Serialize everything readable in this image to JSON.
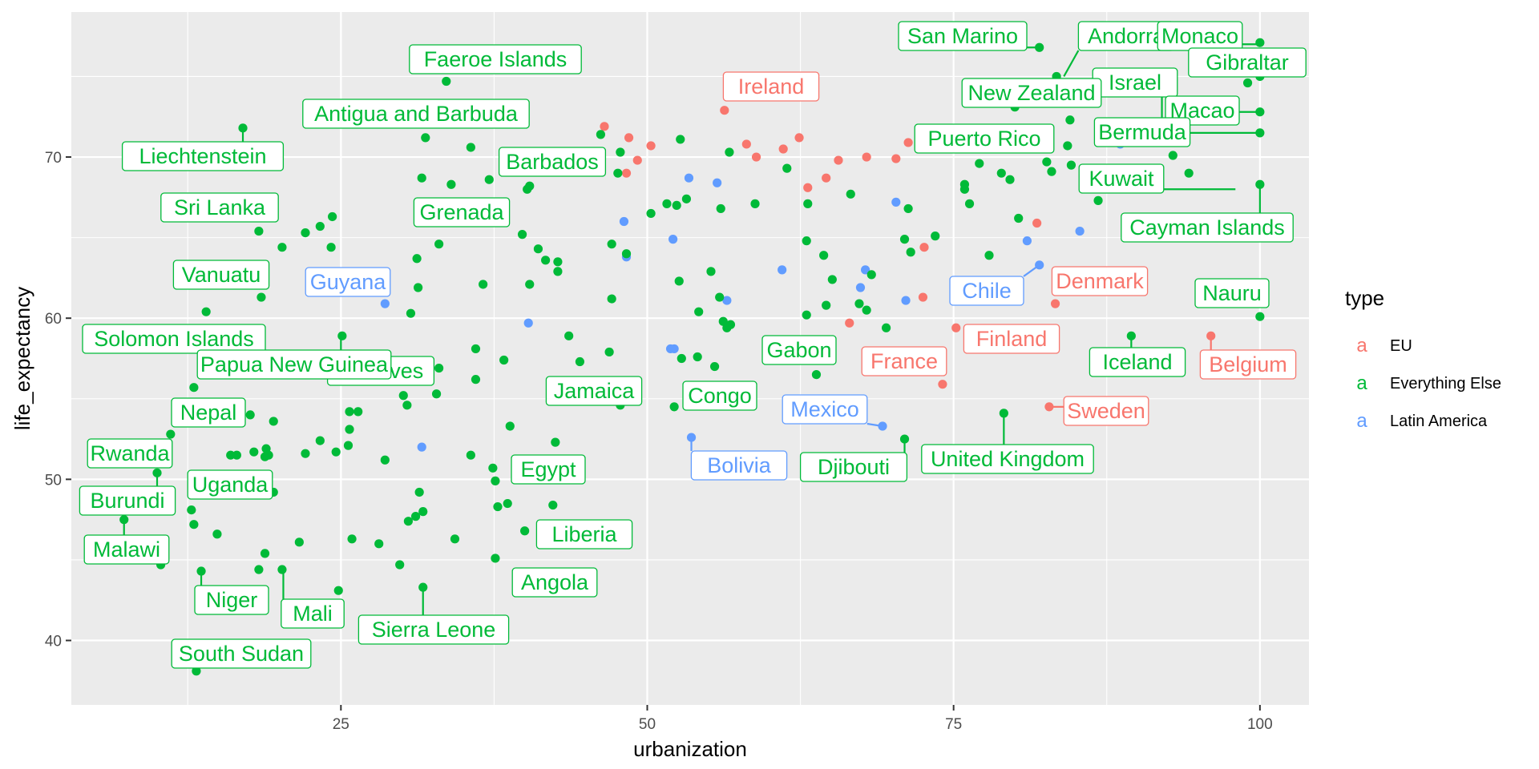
{
  "colors": {
    "EU": "#F8766D",
    "Everything Else": "#00BA38",
    "Latin America": "#619CFF",
    "panel": "#EBEBEB",
    "grid": "#FFFFFF"
  },
  "chart_data": {
    "type": "scatter",
    "xlabel": "urbanization",
    "ylabel": "life_expectancy",
    "xlim": [
      3,
      104
    ],
    "ylim": [
      36,
      79
    ],
    "x_ticks": [
      25,
      50,
      75,
      100
    ],
    "y_ticks": [
      40,
      50,
      60,
      70
    ],
    "legend": {
      "title": "type",
      "position": "right",
      "key_glyph": "a",
      "entries": [
        "EU",
        "Everything Else",
        "Latin America"
      ]
    },
    "grid": true,
    "labels": [
      {
        "text": "San Marino",
        "type": "Everything Else",
        "x": 82,
        "y": 76.8
      },
      {
        "text": "Andorra",
        "type": "Everything Else",
        "x": 84,
        "y": 75
      },
      {
        "text": "Monaco",
        "type": "Everything Else",
        "x": 100,
        "y": 77
      },
      {
        "text": "Gibraltar",
        "type": "Everything Else",
        "x": 100,
        "y": 75
      },
      {
        "text": "Israel",
        "type": "Everything Else",
        "x": 92,
        "y": 72
      },
      {
        "text": "New Zealand",
        "type": "Everything Else",
        "x": 80,
        "y": 73
      },
      {
        "text": "Macao",
        "type": "Everything Else",
        "x": 100,
        "y": 72.8
      },
      {
        "text": "Bermuda",
        "type": "Everything Else",
        "x": 100,
        "y": 71.5
      },
      {
        "text": "Puerto Rico",
        "type": "Everything Else",
        "x": 79,
        "y": 70
      },
      {
        "text": "Kuwait",
        "type": "Everything Else",
        "x": 98,
        "y": 68
      },
      {
        "text": "Cayman Islands",
        "type": "Everything Else",
        "x": 100,
        "y": 68.3
      },
      {
        "text": "Faeroe Islands",
        "type": "Everything Else",
        "x": 42,
        "y": 74.7
      },
      {
        "text": "Ireland",
        "type": "EU",
        "x": 63,
        "y": 72.9
      },
      {
        "text": "Antigua and Barbuda",
        "type": "Everything Else",
        "x": 30,
        "y": 71.2
      },
      {
        "text": "Liechtenstein",
        "type": "Everything Else",
        "x": 17,
        "y": 71.8
      },
      {
        "text": "Barbados",
        "type": "Everything Else",
        "x": 45,
        "y": 68.6
      },
      {
        "text": "Sri Lanka",
        "type": "Everything Else",
        "x": 18.3,
        "y": 65.4
      },
      {
        "text": "Grenada",
        "type": "Everything Else",
        "x": 36,
        "y": 67
      },
      {
        "text": "Vanuatu",
        "type": "Everything Else",
        "x": 18.5,
        "y": 61.3
      },
      {
        "text": "Guyana",
        "type": "Latin America",
        "x": 28.6,
        "y": 60.9
      },
      {
        "text": "Solomon Islands",
        "type": "Everything Else",
        "x": 14,
        "y": 60.3
      },
      {
        "text": "Maldives",
        "type": "Everything Else",
        "x": 33,
        "y": 56.9
      },
      {
        "text": "Papua New Guinea",
        "type": "Everything Else",
        "x": 25,
        "y": 58.8
      },
      {
        "text": "Nepal",
        "type": "Everything Else",
        "x": 13,
        "y": 55.7
      },
      {
        "text": "Rwanda",
        "type": "Everything Else",
        "x": 11,
        "y": 52.8
      },
      {
        "text": "Uganda",
        "type": "Everything Else",
        "x": 12.8,
        "y": 48.1
      },
      {
        "text": "Burundi",
        "type": "Everything Else",
        "x": 10,
        "y": 50.4
      },
      {
        "text": "Malawi",
        "type": "Everything Else",
        "x": 7.3,
        "y": 47.5
      },
      {
        "text": "Niger",
        "type": "Everything Else",
        "x": 13.6,
        "y": 44.3
      },
      {
        "text": "Mali",
        "type": "Everything Else",
        "x": 20.3,
        "y": 44.4
      },
      {
        "text": "Sierra Leone",
        "type": "Everything Else",
        "x": 31.7,
        "y": 43.3
      },
      {
        "text": "South Sudan",
        "type": "Everything Else",
        "x": 13.2,
        "y": 38.1
      },
      {
        "text": "Jamaica",
        "type": "Everything Else",
        "x": 47.8,
        "y": 54.6
      },
      {
        "text": "Egypt",
        "type": "Everything Else",
        "x": 44,
        "y": 51
      },
      {
        "text": "Liberia",
        "type": "Everything Else",
        "x": 48,
        "y": 48
      },
      {
        "text": "Angola",
        "type": "Everything Else",
        "x": 43,
        "y": 45
      },
      {
        "text": "Congo",
        "type": "Everything Else",
        "x": 52.2,
        "y": 54.5
      },
      {
        "text": "Gabon",
        "type": "Everything Else",
        "x": 66,
        "y": 58.5
      },
      {
        "text": "Mexico",
        "type": "Latin America",
        "x": 69.2,
        "y": 53.3
      },
      {
        "text": "Bolivia",
        "type": "Latin America",
        "x": 53.6,
        "y": 52.6
      },
      {
        "text": "Djibouti",
        "type": "Everything Else",
        "x": 71,
        "y": 52.5
      },
      {
        "text": "France",
        "type": "EU",
        "x": 73,
        "y": 56
      },
      {
        "text": "Finland",
        "type": "EU",
        "x": 75.3,
        "y": 59.4
      },
      {
        "text": "Chile",
        "type": "Latin America",
        "x": 82,
        "y": 63.3
      },
      {
        "text": "Denmark",
        "type": "EU",
        "x": 83.3,
        "y": 60.9
      },
      {
        "text": "United Kingdom",
        "type": "Everything Else",
        "x": 79.1,
        "y": 54.1
      },
      {
        "text": "Sweden",
        "type": "EU",
        "x": 82.8,
        "y": 54.5
      },
      {
        "text": "Iceland",
        "type": "Everything Else",
        "x": 89.5,
        "y": 58.9
      },
      {
        "text": "Belgium",
        "type": "EU",
        "x": 96,
        "y": 58.9
      },
      {
        "text": "Nauru",
        "type": "Everything Else",
        "x": 100,
        "y": 60.1
      }
    ],
    "series": [
      {
        "name": "EU",
        "points": [
          [
            46.5,
            71.9
          ],
          [
            48.5,
            71.2
          ],
          [
            48.3,
            69.0
          ],
          [
            49.2,
            69.8
          ],
          [
            50.3,
            70.7
          ],
          [
            56.3,
            72.9
          ],
          [
            58.1,
            70.8
          ],
          [
            58.9,
            70.0
          ],
          [
            61.1,
            70.5
          ],
          [
            62.4,
            71.2
          ],
          [
            63.1,
            68.1
          ],
          [
            64.6,
            68.7
          ],
          [
            65.6,
            69.8
          ],
          [
            67.9,
            70.0
          ],
          [
            70.3,
            69.9
          ],
          [
            71.3,
            70.9
          ],
          [
            72.6,
            64.4
          ],
          [
            72.5,
            61.3
          ],
          [
            66.5,
            59.7
          ],
          [
            75.2,
            59.4
          ],
          [
            74.1,
            55.9
          ],
          [
            81.8,
            65.9
          ],
          [
            83.3,
            60.9
          ],
          [
            82.8,
            54.5
          ],
          [
            96.0,
            58.9
          ]
        ]
      },
      {
        "name": "Latin America",
        "points": [
          [
            28.6,
            60.9
          ],
          [
            31.6,
            52.0
          ],
          [
            48.1,
            66.0
          ],
          [
            48.3,
            63.8
          ],
          [
            40.3,
            59.7
          ],
          [
            52.2,
            58.1
          ],
          [
            51.9,
            58.1
          ],
          [
            52.1,
            64.9
          ],
          [
            53.4,
            68.7
          ],
          [
            55.7,
            68.4
          ],
          [
            56.5,
            61.1
          ],
          [
            53.6,
            52.6
          ],
          [
            61.0,
            63.0
          ],
          [
            67.4,
            61.9
          ],
          [
            67.8,
            63.0
          ],
          [
            69.2,
            53.3
          ],
          [
            70.3,
            67.2
          ],
          [
            71.1,
            61.1
          ],
          [
            81.0,
            64.8
          ],
          [
            82.0,
            63.3
          ],
          [
            85.3,
            65.4
          ],
          [
            88.6,
            70.8
          ]
        ]
      },
      {
        "name": "Everything Else",
        "points": [
          [
            17.0,
            71.8
          ],
          [
            33.6,
            74.7
          ],
          [
            31.9,
            71.2
          ],
          [
            31.6,
            68.7
          ],
          [
            34.0,
            68.3
          ],
          [
            35.6,
            70.6
          ],
          [
            37.1,
            68.6
          ],
          [
            40.2,
            68.0
          ],
          [
            40.4,
            68.2
          ],
          [
            46.2,
            71.4
          ],
          [
            47.8,
            70.3
          ],
          [
            52.7,
            71.1
          ],
          [
            47.6,
            69.0
          ],
          [
            18.3,
            65.4
          ],
          [
            20.2,
            64.4
          ],
          [
            22.1,
            65.3
          ],
          [
            23.3,
            65.7
          ],
          [
            24.3,
            66.3
          ],
          [
            24.2,
            64.4
          ],
          [
            18.5,
            61.3
          ],
          [
            14.0,
            60.4
          ],
          [
            31.2,
            63.7
          ],
          [
            33.0,
            64.6
          ],
          [
            31.3,
            61.9
          ],
          [
            30.7,
            60.3
          ],
          [
            36.6,
            62.1
          ],
          [
            39.8,
            65.2
          ],
          [
            41.1,
            64.3
          ],
          [
            41.7,
            63.6
          ],
          [
            42.7,
            63.5
          ],
          [
            42.7,
            62.9
          ],
          [
            40.4,
            62.1
          ],
          [
            47.1,
            64.6
          ],
          [
            48.3,
            64.0
          ],
          [
            47.1,
            61.2
          ],
          [
            50.3,
            66.5
          ],
          [
            51.6,
            67.1
          ],
          [
            52.4,
            67.0
          ],
          [
            53.2,
            67.4
          ],
          [
            52.6,
            62.3
          ],
          [
            54.2,
            60.4
          ],
          [
            55.2,
            62.9
          ],
          [
            55.9,
            61.3
          ],
          [
            56.2,
            59.8
          ],
          [
            56.5,
            59.4
          ],
          [
            56.8,
            59.6
          ],
          [
            56.0,
            66.8
          ],
          [
            56.7,
            70.3
          ],
          [
            58.8,
            67.1
          ],
          [
            61.4,
            69.3
          ],
          [
            63.1,
            67.1
          ],
          [
            63.0,
            64.8
          ],
          [
            64.4,
            63.9
          ],
          [
            63.0,
            60.2
          ],
          [
            64.6,
            60.8
          ],
          [
            65.1,
            62.4
          ],
          [
            66.6,
            67.7
          ],
          [
            67.3,
            60.9
          ],
          [
            67.9,
            60.5
          ],
          [
            68.3,
            62.7
          ],
          [
            69.5,
            59.4
          ],
          [
            71.0,
            64.9
          ],
          [
            71.3,
            66.8
          ],
          [
            71.5,
            64.1
          ],
          [
            73.5,
            65.1
          ],
          [
            75.9,
            68.3
          ],
          [
            75.9,
            68.0
          ],
          [
            76.3,
            67.1
          ],
          [
            77.1,
            69.6
          ],
          [
            77.9,
            63.9
          ],
          [
            78.9,
            69.0
          ],
          [
            79.6,
            68.6
          ],
          [
            80.3,
            66.2
          ],
          [
            80.0,
            73.1
          ],
          [
            82.0,
            76.8
          ],
          [
            83.4,
            75.0
          ],
          [
            82.6,
            69.7
          ],
          [
            83.0,
            69.1
          ],
          [
            84.3,
            70.7
          ],
          [
            84.5,
            72.3
          ],
          [
            84.6,
            69.5
          ],
          [
            86.8,
            67.3
          ],
          [
            92.9,
            70.1
          ],
          [
            94.2,
            69.0
          ],
          [
            95.3,
            75.3
          ],
          [
            99.0,
            74.6
          ],
          [
            100.0,
            77.1
          ],
          [
            100.0,
            75.0
          ],
          [
            100.0,
            72.8
          ],
          [
            100.0,
            71.5
          ],
          [
            100.0,
            68.3
          ],
          [
            100.0,
            60.1
          ],
          [
            89.5,
            58.9
          ],
          [
            79.1,
            54.1
          ],
          [
            71.0,
            52.5
          ],
          [
            63.8,
            56.5
          ],
          [
            55.5,
            57.0
          ],
          [
            54.1,
            57.6
          ],
          [
            52.8,
            57.5
          ],
          [
            52.2,
            54.5
          ],
          [
            47.8,
            54.6
          ],
          [
            46.9,
            57.9
          ],
          [
            44.5,
            57.3
          ],
          [
            43.6,
            58.9
          ],
          [
            42.5,
            52.3
          ],
          [
            42.3,
            48.4
          ],
          [
            40.0,
            46.8
          ],
          [
            38.8,
            53.3
          ],
          [
            38.6,
            48.5
          ],
          [
            37.8,
            48.3
          ],
          [
            38.3,
            57.4
          ],
          [
            37.4,
            50.7
          ],
          [
            37.6,
            49.9
          ],
          [
            37.6,
            45.1
          ],
          [
            36.0,
            58.1
          ],
          [
            36.0,
            56.2
          ],
          [
            35.6,
            51.5
          ],
          [
            34.3,
            46.3
          ],
          [
            33.0,
            56.9
          ],
          [
            32.8,
            55.3
          ],
          [
            31.7,
            48.0
          ],
          [
            31.4,
            49.2
          ],
          [
            31.1,
            47.7
          ],
          [
            31.7,
            43.3
          ],
          [
            30.4,
            54.6
          ],
          [
            30.1,
            55.2
          ],
          [
            29.8,
            44.7
          ],
          [
            30.5,
            47.4
          ],
          [
            28.6,
            51.2
          ],
          [
            28.1,
            46.0
          ],
          [
            26.4,
            54.2
          ],
          [
            25.7,
            54.2
          ],
          [
            25.7,
            53.1
          ],
          [
            25.9,
            46.3
          ],
          [
            25.6,
            52.1
          ],
          [
            25.1,
            58.9
          ],
          [
            24.6,
            51.7
          ],
          [
            24.8,
            43.1
          ],
          [
            23.3,
            52.4
          ],
          [
            22.1,
            51.6
          ],
          [
            21.6,
            46.1
          ],
          [
            20.2,
            44.4
          ],
          [
            19.5,
            53.6
          ],
          [
            19.1,
            51.5
          ],
          [
            19.5,
            49.2
          ],
          [
            18.8,
            45.4
          ],
          [
            18.9,
            51.9
          ],
          [
            18.8,
            51.4
          ],
          [
            18.3,
            44.4
          ],
          [
            17.6,
            54.0
          ],
          [
            17.9,
            51.7
          ],
          [
            16.5,
            51.5
          ],
          [
            16.0,
            51.5
          ],
          [
            14.9,
            46.6
          ],
          [
            13.6,
            44.3
          ],
          [
            13.2,
            38.1
          ],
          [
            13.0,
            47.2
          ],
          [
            12.8,
            48.1
          ],
          [
            13.0,
            55.7
          ],
          [
            11.1,
            52.8
          ],
          [
            10.0,
            50.4
          ],
          [
            10.3,
            44.7
          ],
          [
            7.3,
            47.5
          ]
        ]
      }
    ]
  }
}
